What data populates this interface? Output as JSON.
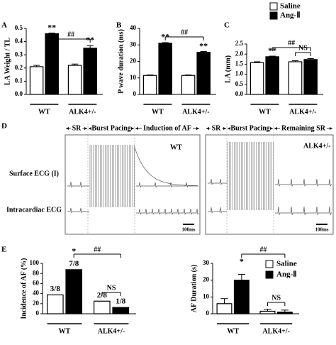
{
  "panel_labels": [
    "A",
    "B",
    "C",
    "D",
    "E"
  ],
  "chart_data": [
    {
      "type": "bar",
      "ylabel": "LA Weight / TL",
      "categories": [
        "WT",
        "ALK4+/-"
      ],
      "series": [
        {
          "name": "Saline",
          "color": "#ffffff",
          "values": [
            0.21,
            0.22
          ],
          "errors": [
            0.01,
            0.01
          ]
        },
        {
          "name": "Ang-Ⅱ",
          "color": "#000000",
          "values": [
            0.46,
            0.35
          ],
          "errors": [
            0.005,
            0.02
          ]
        }
      ],
      "ylim": [
        0,
        0.5
      ],
      "yticks": [
        {
          "value": 0,
          "label": "0.0"
        },
        0.1,
        0.2,
        0.3,
        0.4,
        0.5
      ],
      "annotations": [
        "**",
        "**",
        "##"
      ]
    },
    {
      "type": "bar",
      "ylabel": "P wave duration (ms)",
      "categories": [
        "WT",
        "ALK4+/-"
      ],
      "series": [
        {
          "color": "#ffffff",
          "values": [
            11.5,
            11.5
          ],
          "errors": [
            0.3,
            0.3
          ]
        },
        {
          "color": "#000000",
          "values": [
            31,
            25.5
          ],
          "errors": [
            0.4,
            0.5
          ]
        }
      ],
      "ylim": [
        0,
        40
      ],
      "yticks": [
        0,
        10,
        20,
        30,
        40
      ],
      "annotations": [
        "**",
        "**",
        "##"
      ]
    },
    {
      "type": "bar",
      "ylabel": "LA (mm)",
      "categories": [
        "WT",
        "ALK4+/-"
      ],
      "series": [
        {
          "color": "#ffffff",
          "values": [
            1.58,
            1.62
          ],
          "errors": [
            0.04,
            0.05
          ]
        },
        {
          "color": "#000000",
          "values": [
            1.87,
            1.73
          ],
          "errors": [
            0.03,
            0.05
          ]
        }
      ],
      "ylim": [
        0,
        2.5
      ],
      "yticks": [
        {
          "value": 0,
          "label": "0.0"
        },
        0.5,
        {
          "value": 1,
          "label": "1.0"
        },
        1.5,
        {
          "value": 2,
          "label": "2.0"
        },
        2.5
      ],
      "annotations": [
        "**",
        "##",
        "NS"
      ]
    },
    {
      "type": "bar",
      "ylabel": "Incidence of AF (%)",
      "categories": [
        "WT",
        "ALK4+/-"
      ],
      "series": [
        {
          "color": "#ffffff",
          "values": [
            37.5,
            25
          ],
          "value_labels": [
            "3/8",
            "2/8"
          ]
        },
        {
          "color": "#000000",
          "values": [
            87.5,
            12.5
          ],
          "value_labels": [
            "7/8",
            "1/8"
          ]
        }
      ],
      "ylim": [
        0,
        100
      ],
      "yticks": [
        0,
        20,
        40,
        60,
        80,
        100
      ],
      "annotations": [
        "*",
        "##",
        "NS"
      ]
    },
    {
      "type": "bar",
      "ylabel": "AF Duration (s)",
      "categories": [
        "WT",
        "ALK4+/-"
      ],
      "series": [
        {
          "name": "Saline",
          "color": "#ffffff",
          "values": [
            6,
            1.5
          ],
          "errors": [
            3,
            1.2
          ]
        },
        {
          "name": "Ang-Ⅱ",
          "color": "#000000",
          "values": [
            20,
            1
          ],
          "errors": [
            3.5,
            1.2
          ]
        }
      ],
      "ylim": [
        0,
        30
      ],
      "yticks": [
        0,
        10,
        20,
        30
      ],
      "annotations": [
        "*",
        "##",
        "NS"
      ]
    }
  ],
  "ecg": {
    "left": {
      "phases": [
        "SR",
        "Burst Pacing",
        "Induction of AF"
      ],
      "genotype": "WT",
      "scale": "100ms"
    },
    "right": {
      "phases": [
        "SR",
        "Burst Pacing",
        "Remaining SR"
      ],
      "genotype": "ALK4+/-",
      "scale": "100ms"
    },
    "row_labels": [
      "Surface ECG (I)",
      "Intracardiac  ECG"
    ]
  }
}
